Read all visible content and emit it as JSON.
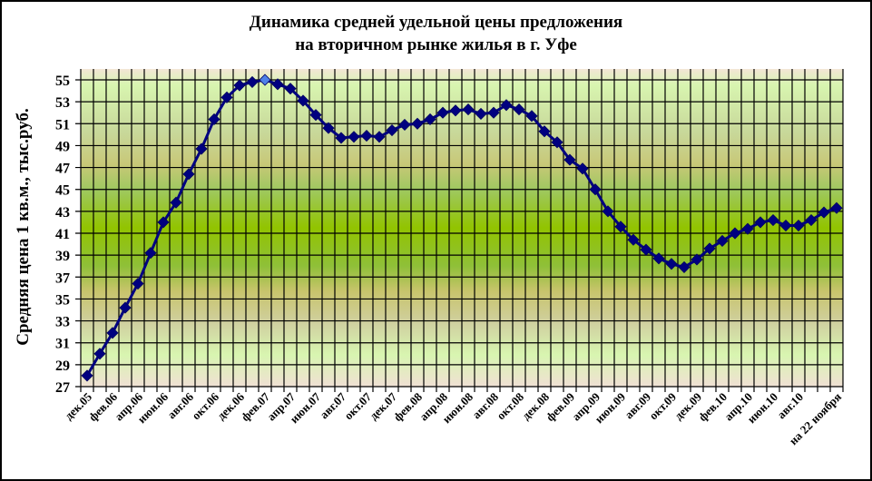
{
  "chart_data": {
    "type": "line",
    "title": "Динамика средней удельной цены предложения на вторичном рынке жилья в г. Уфе",
    "title_lines": [
      "Динамика средней удельной цены предложения",
      "на вторичном рынке жилья в г. Уфе"
    ],
    "xlabel": "",
    "ylabel": "Средняя цена 1 кв.м., тыс.руб.",
    "ylim": [
      27,
      55
    ],
    "yticks": [
      27,
      29,
      31,
      33,
      35,
      37,
      39,
      41,
      43,
      45,
      47,
      49,
      51,
      53,
      55
    ],
    "grid": true,
    "legend": null,
    "x_tick_labels": [
      "дек.05",
      "фев.06",
      "апр.06",
      "июн.06",
      "авг.06",
      "окт.06",
      "дек.06",
      "фев.07",
      "апр.07",
      "июн.07",
      "авг.07",
      "окт.07",
      "дек.07",
      "фев.08",
      "апр.08",
      "июн.08",
      "авг.08",
      "окт.08",
      "дек.08",
      "фев.09",
      "апр.09",
      "июн.09",
      "авг.09",
      "окт.09",
      "дек.09",
      "фев.10",
      "апр.10",
      "июн.10",
      "авг.10",
      "на 22 ноября"
    ],
    "series": [
      {
        "name": "Средняя цена 1 кв.м.",
        "color": "#000080",
        "highlight_point": {
          "index": 14,
          "color": "#4f81e8"
        },
        "values": [
          28.0,
          30.0,
          31.9,
          34.2,
          36.4,
          39.2,
          42.0,
          43.8,
          46.4,
          48.7,
          51.4,
          53.4,
          54.5,
          54.8,
          55.0,
          54.6,
          54.2,
          53.1,
          51.8,
          50.6,
          49.7,
          49.8,
          49.9,
          49.8,
          50.4,
          50.9,
          51.0,
          51.4,
          52.0,
          52.2,
          52.3,
          51.9,
          52.0,
          52.7,
          52.3,
          51.7,
          50.3,
          49.3,
          47.7,
          46.9,
          45.0,
          43.0,
          41.6,
          40.4,
          39.5,
          38.7,
          38.2,
          37.9,
          38.6,
          39.6,
          40.3,
          41.0,
          41.4,
          42.0,
          42.2,
          41.7,
          41.7,
          42.2,
          42.9,
          43.3
        ]
      }
    ]
  }
}
